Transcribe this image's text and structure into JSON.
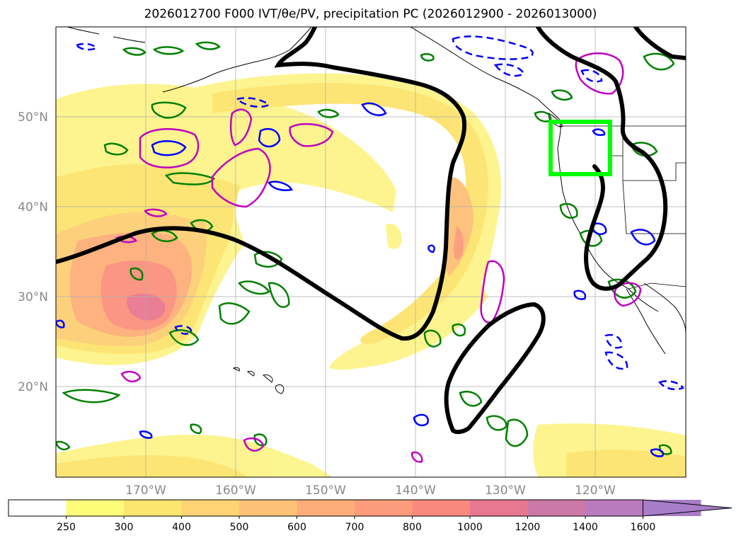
{
  "title": {
    "run": "2026012700",
    "forecast": "F000",
    "fields": "IVT/θe/PV, precipitation PC",
    "window": "(2026012900 - 2026013000)"
  },
  "map": {
    "projection": "PlateCarree",
    "lon_range": [
      -180,
      -110
    ],
    "lat_range": [
      10,
      60
    ],
    "gridlines": true,
    "lat_labels": [
      "50°N",
      "40°N",
      "30°N",
      "20°N"
    ],
    "lon_labels": [
      "170°W",
      "160°W",
      "150°W",
      "140°W",
      "130°W",
      "120°W"
    ],
    "region_box": {
      "color": "#00ff00",
      "lon_range": [
        -125,
        -118.3
      ],
      "lat_range": [
        43.2,
        49.3
      ]
    }
  },
  "colorbar": {
    "levels": [
      "250",
      "300",
      "400",
      "500",
      "600",
      "700",
      "800",
      "1000",
      "1200",
      "1400",
      "1600"
    ],
    "colors": [
      "#fdfd7a",
      "#fde66f",
      "#fdd374",
      "#fdc277",
      "#fdad79",
      "#fd9c7b",
      "#fa897d",
      "#e8788f",
      "#cc79a7",
      "#b97bbd",
      "#a77cc9"
    ],
    "extend": "max"
  },
  "legend_colors": {
    "pv": "#008000",
    "theta_e_cold": "#0000ff",
    "theta_e_warm": "#c000c0",
    "jet_contour": "#000000",
    "box": "#00ff00"
  }
}
